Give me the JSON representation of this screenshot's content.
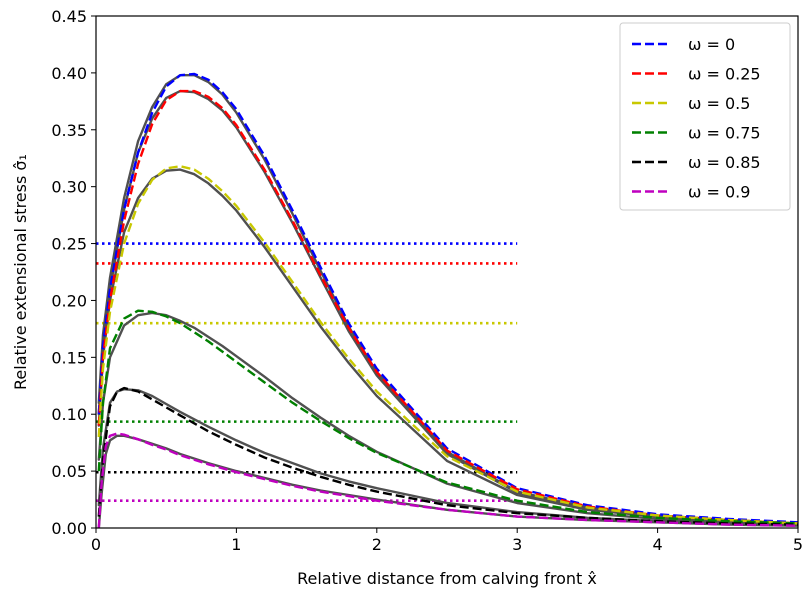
{
  "chart_data": {
    "type": "line",
    "xlabel": "Relative distance from calving front x̂",
    "ylabel": "Relative extensional stress σ̂₁",
    "xlim": [
      0,
      5
    ],
    "ylim": [
      0,
      0.45
    ],
    "xticks": [
      0,
      1,
      2,
      3,
      4,
      5
    ],
    "xtick_labels": [
      "0",
      "1",
      "2",
      "3",
      "4",
      "5"
    ],
    "yticks": [
      0.0,
      0.05,
      0.1,
      0.15,
      0.2,
      0.25,
      0.3,
      0.35,
      0.4,
      0.45
    ],
    "ytick_labels": [
      "0.00",
      "0.05",
      "0.10",
      "0.15",
      "0.20",
      "0.25",
      "0.30",
      "0.35",
      "0.40",
      "0.45"
    ],
    "grid": false,
    "legend_position": "top-right",
    "series": [
      {
        "name": "ω = 0",
        "color": "#0000ff",
        "omega": 0,
        "threshold": 0.25,
        "dashed": {
          "x": [
            0.02,
            0.05,
            0.1,
            0.2,
            0.3,
            0.4,
            0.5,
            0.6,
            0.7,
            0.8,
            0.9,
            1.0,
            1.2,
            1.4,
            1.6,
            1.8,
            2.0,
            2.5,
            3.0,
            3.5,
            4.0,
            4.5,
            5.0
          ],
          "y": [
            0.1,
            0.16,
            0.21,
            0.28,
            0.33,
            0.365,
            0.388,
            0.398,
            0.399,
            0.394,
            0.383,
            0.368,
            0.327,
            0.279,
            0.229,
            0.18,
            0.14,
            0.07,
            0.035,
            0.02,
            0.012,
            0.008,
            0.005
          ]
        },
        "solid": {
          "x": [
            0.02,
            0.05,
            0.1,
            0.2,
            0.3,
            0.4,
            0.5,
            0.6,
            0.7,
            0.8,
            0.9,
            1.0,
            1.2,
            1.4,
            1.6,
            1.8,
            2.0,
            2.5,
            3.0,
            3.5,
            4.0,
            4.5,
            5.0
          ],
          "y": [
            0.11,
            0.17,
            0.22,
            0.29,
            0.34,
            0.37,
            0.39,
            0.398,
            0.398,
            0.392,
            0.381,
            0.365,
            0.324,
            0.276,
            0.226,
            0.177,
            0.137,
            0.067,
            0.032,
            0.018,
            0.011,
            0.007,
            0.004
          ]
        }
      },
      {
        "name": "ω = 0.25",
        "color": "#ff0000",
        "omega": 0.25,
        "threshold": 0.2325,
        "dashed": {
          "x": [
            0.02,
            0.05,
            0.1,
            0.2,
            0.3,
            0.4,
            0.5,
            0.6,
            0.7,
            0.8,
            0.9,
            1.0,
            1.2,
            1.4,
            1.6,
            1.8,
            2.0,
            2.5,
            3.0,
            3.5,
            4.0,
            4.5,
            5.0
          ],
          "y": [
            0.09,
            0.15,
            0.2,
            0.27,
            0.32,
            0.355,
            0.376,
            0.384,
            0.384,
            0.379,
            0.369,
            0.354,
            0.315,
            0.27,
            0.222,
            0.176,
            0.137,
            0.068,
            0.034,
            0.019,
            0.011,
            0.007,
            0.004
          ]
        },
        "solid": {
          "x": [
            0.02,
            0.05,
            0.1,
            0.2,
            0.3,
            0.4,
            0.5,
            0.6,
            0.7,
            0.8,
            0.9,
            1.0,
            1.2,
            1.4,
            1.6,
            1.8,
            2.0,
            2.5,
            3.0,
            3.5,
            4.0,
            4.5,
            5.0
          ],
          "y": [
            0.1,
            0.16,
            0.21,
            0.28,
            0.33,
            0.36,
            0.378,
            0.384,
            0.383,
            0.377,
            0.367,
            0.352,
            0.313,
            0.268,
            0.22,
            0.173,
            0.134,
            0.065,
            0.031,
            0.017,
            0.01,
            0.006,
            0.004
          ]
        }
      },
      {
        "name": "ω = 0.5",
        "color": "#c8c800",
        "omega": 0.5,
        "threshold": 0.18,
        "dashed": {
          "x": [
            0.02,
            0.05,
            0.1,
            0.2,
            0.3,
            0.4,
            0.5,
            0.6,
            0.7,
            0.8,
            0.9,
            1.0,
            1.2,
            1.4,
            1.6,
            1.8,
            2.0,
            2.5,
            3.0,
            3.5,
            4.0,
            4.5,
            5.0
          ],
          "y": [
            0.08,
            0.14,
            0.19,
            0.25,
            0.285,
            0.306,
            0.316,
            0.318,
            0.315,
            0.307,
            0.296,
            0.283,
            0.251,
            0.216,
            0.181,
            0.149,
            0.12,
            0.063,
            0.032,
            0.018,
            0.011,
            0.007,
            0.004
          ]
        },
        "solid": {
          "x": [
            0.02,
            0.05,
            0.1,
            0.2,
            0.3,
            0.4,
            0.5,
            0.6,
            0.7,
            0.8,
            0.9,
            1.0,
            1.2,
            1.4,
            1.6,
            1.8,
            2.0,
            2.5,
            3.0,
            3.5,
            4.0,
            4.5,
            5.0
          ],
          "y": [
            0.09,
            0.15,
            0.2,
            0.26,
            0.29,
            0.307,
            0.314,
            0.315,
            0.311,
            0.303,
            0.292,
            0.279,
            0.247,
            0.212,
            0.177,
            0.145,
            0.116,
            0.059,
            0.029,
            0.016,
            0.01,
            0.006,
            0.004
          ]
        }
      },
      {
        "name": "ω = 0.75",
        "color": "#008000",
        "omega": 0.75,
        "threshold": 0.0935,
        "dashed": {
          "x": [
            0.02,
            0.05,
            0.1,
            0.2,
            0.3,
            0.4,
            0.5,
            0.6,
            0.7,
            0.8,
            0.9,
            1.0,
            1.2,
            1.4,
            1.6,
            1.8,
            2.0,
            2.5,
            3.0,
            3.5,
            4.0,
            4.5,
            5.0
          ],
          "y": [
            0.05,
            0.11,
            0.158,
            0.184,
            0.191,
            0.19,
            0.186,
            0.18,
            0.172,
            0.164,
            0.155,
            0.146,
            0.128,
            0.11,
            0.094,
            0.079,
            0.066,
            0.04,
            0.024,
            0.014,
            0.009,
            0.006,
            0.004
          ]
        },
        "solid": {
          "x": [
            0.02,
            0.05,
            0.1,
            0.2,
            0.3,
            0.4,
            0.5,
            0.6,
            0.7,
            0.8,
            0.9,
            1.0,
            1.2,
            1.4,
            1.6,
            1.8,
            2.0,
            2.5,
            3.0,
            3.5,
            4.0,
            4.5,
            5.0
          ],
          "y": [
            0.06,
            0.11,
            0.15,
            0.178,
            0.187,
            0.189,
            0.187,
            0.182,
            0.176,
            0.168,
            0.16,
            0.151,
            0.133,
            0.114,
            0.097,
            0.081,
            0.067,
            0.039,
            0.022,
            0.013,
            0.008,
            0.005,
            0.003
          ]
        }
      },
      {
        "name": "ω = 0.85",
        "color": "#000000",
        "omega": 0.85,
        "threshold": 0.049,
        "dashed": {
          "x": [
            0.02,
            0.05,
            0.1,
            0.15,
            0.2,
            0.3,
            0.4,
            0.5,
            0.6,
            0.8,
            1.0,
            1.2,
            1.4,
            1.6,
            1.8,
            2.0,
            2.5,
            3.0,
            3.5,
            4.0,
            4.5,
            5.0
          ],
          "y": [
            0.01,
            0.06,
            0.107,
            0.12,
            0.123,
            0.12,
            0.113,
            0.106,
            0.099,
            0.085,
            0.073,
            0.062,
            0.053,
            0.045,
            0.038,
            0.032,
            0.02,
            0.013,
            0.009,
            0.006,
            0.004,
            0.003
          ]
        },
        "solid": {
          "x": [
            0.02,
            0.05,
            0.1,
            0.15,
            0.2,
            0.3,
            0.4,
            0.5,
            0.6,
            0.8,
            1.0,
            1.2,
            1.4,
            1.6,
            1.8,
            2.0,
            2.5,
            3.0,
            3.5,
            4.0,
            4.5,
            5.0
          ],
          "y": [
            0.02,
            0.07,
            0.11,
            0.12,
            0.122,
            0.121,
            0.116,
            0.109,
            0.102,
            0.089,
            0.077,
            0.066,
            0.057,
            0.048,
            0.041,
            0.035,
            0.022,
            0.014,
            0.009,
            0.006,
            0.004,
            0.003
          ]
        }
      },
      {
        "name": "ω = 0.9",
        "color": "#bf00bf",
        "omega": 0.9,
        "threshold": 0.024,
        "dashed": {
          "x": [
            0.02,
            0.04,
            0.07,
            0.1,
            0.15,
            0.2,
            0.3,
            0.4,
            0.5,
            0.6,
            0.8,
            1.0,
            1.2,
            1.4,
            1.6,
            1.8,
            2.0,
            2.5,
            3.0,
            3.5,
            4.0,
            4.5,
            5.0
          ],
          "y": [
            0.0,
            0.04,
            0.072,
            0.081,
            0.083,
            0.082,
            0.078,
            0.073,
            0.069,
            0.064,
            0.056,
            0.049,
            0.043,
            0.037,
            0.032,
            0.028,
            0.024,
            0.016,
            0.01,
            0.007,
            0.005,
            0.003,
            0.002
          ]
        },
        "solid": {
          "x": [
            0.02,
            0.04,
            0.07,
            0.1,
            0.15,
            0.2,
            0.3,
            0.4,
            0.5,
            0.6,
            0.8,
            1.0,
            1.2,
            1.4,
            1.6,
            1.8,
            2.0,
            2.5,
            3.0,
            3.5,
            4.0,
            4.5,
            5.0
          ],
          "y": [
            0.0,
            0.03,
            0.065,
            0.077,
            0.081,
            0.081,
            0.078,
            0.074,
            0.07,
            0.065,
            0.057,
            0.05,
            0.044,
            0.038,
            0.033,
            0.029,
            0.025,
            0.016,
            0.01,
            0.007,
            0.005,
            0.003,
            0.002
          ]
        }
      }
    ],
    "threshold_x_range": [
      0,
      3
    ],
    "fit_line_color": "#505050"
  }
}
